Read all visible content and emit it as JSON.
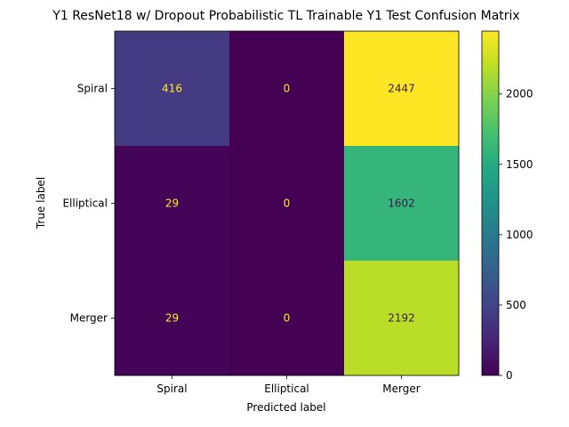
{
  "chart_data": {
    "type": "heatmap",
    "title": "Y1 ResNet18 w/ Dropout Probabilistic TL Trainable Y1 Test Confusion Matrix",
    "xlabel": "Predicted label",
    "ylabel": "True label",
    "x_categories": [
      "Spiral",
      "Elliptical",
      "Merger"
    ],
    "y_categories": [
      "Spiral",
      "Elliptical",
      "Merger"
    ],
    "values": [
      [
        416,
        0,
        2447
      ],
      [
        29,
        0,
        1602
      ],
      [
        29,
        0,
        2192
      ]
    ],
    "colormap": "viridis",
    "colorbar": {
      "range": [
        0,
        2447
      ],
      "ticks": [
        0,
        500,
        1000,
        1500,
        2000
      ]
    },
    "text_colors": {
      "on_dark": "#fde725",
      "on_light": "#3b1c52"
    }
  }
}
